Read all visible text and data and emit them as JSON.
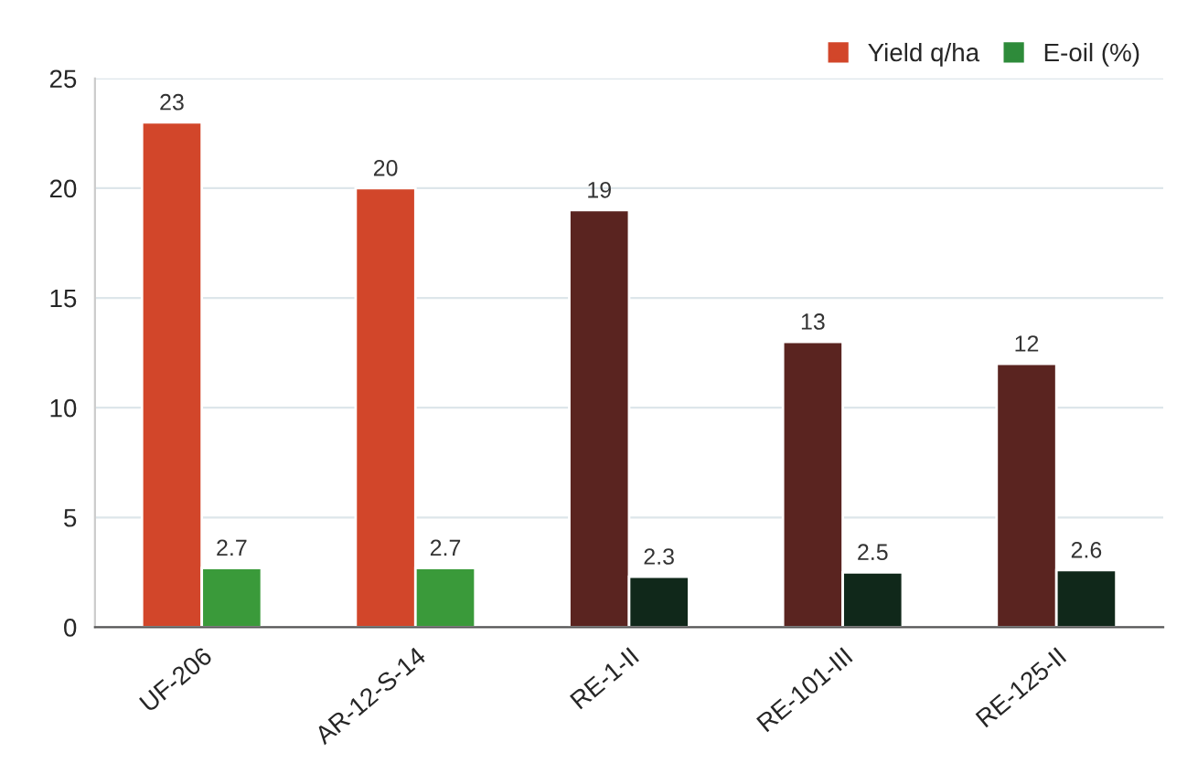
{
  "chart_data": {
    "type": "bar",
    "categories": [
      "UF-206",
      "AR-12-S-14",
      "RE-1-II",
      "RE-101-III",
      "RE-125-II"
    ],
    "series": [
      {
        "name": "Yield q/ha",
        "color": "#d2462a",
        "colors": [
          "#d2462a",
          "#d2462a",
          "#5a2420",
          "#5a2420",
          "#5a2420"
        ],
        "values": [
          23,
          20,
          19,
          13,
          12
        ]
      },
      {
        "name": "E-oil (%)",
        "color": "#2e8b3a",
        "colors": [
          "#3a9a3a",
          "#3a9a3a",
          "#10281a",
          "#10281a",
          "#10281a"
        ],
        "values": [
          2.7,
          2.7,
          2.3,
          2.5,
          2.6
        ]
      }
    ],
    "ylim": [
      0,
      25
    ],
    "yticks": [
      0,
      5,
      10,
      15,
      20,
      25
    ],
    "grid": "y",
    "legend": "top right",
    "data_labels": true
  }
}
